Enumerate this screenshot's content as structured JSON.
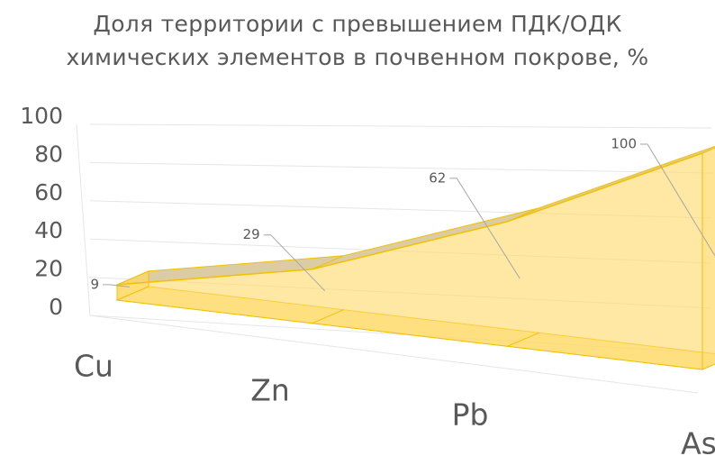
{
  "chart_data": {
    "type": "area3d",
    "title": "Доля территории с превышением ПДК/ОДК химических элементов в почвенном покрове, %",
    "categories": [
      "Cu",
      "Zn",
      "Pb",
      "As"
    ],
    "values": [
      9,
      29,
      62,
      100
    ],
    "color": "#ffd966",
    "ylim": [
      0,
      100
    ],
    "yticks": [
      0,
      20,
      40,
      60,
      80,
      100
    ],
    "grid": true
  }
}
